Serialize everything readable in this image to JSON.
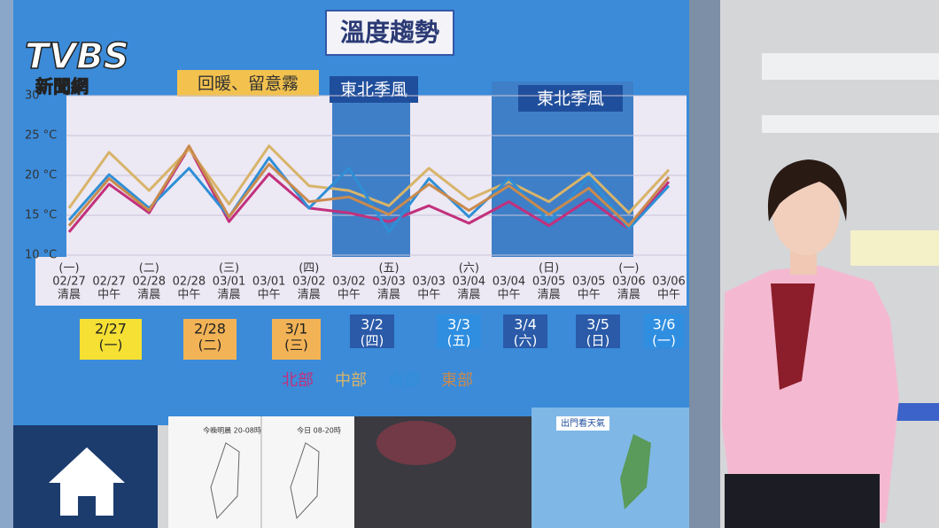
{
  "logo": {
    "brand": "TVBS",
    "sub": "新聞網"
  },
  "chart_data": {
    "type": "line",
    "title": "溫度趨勢",
    "annotations": [
      "回暖、留意霧",
      "東北季風",
      "東北季風"
    ],
    "categories": [
      "02/27",
      "02/27",
      "02/28",
      "02/28",
      "03/01",
      "03/01",
      "03/02",
      "03/02",
      "03/03",
      "03/03",
      "03/04",
      "03/04",
      "03/05",
      "03/05",
      "03/06",
      "03/06"
    ],
    "times": [
      "清晨",
      "中午",
      "清晨",
      "中午",
      "清晨",
      "中午",
      "清晨",
      "中午",
      "清晨",
      "中午",
      "清晨",
      "中午",
      "清晨",
      "中午",
      "清晨",
      "中午"
    ],
    "weekdays": [
      "(一)",
      null,
      "(二)",
      null,
      "(三)",
      null,
      "(四)",
      null,
      "(五)",
      null,
      "(六)",
      null,
      "(日)",
      null,
      "(一)",
      null
    ],
    "category_colors": [
      "#7b3fb0",
      "#333333",
      "#333333",
      "#333333",
      "#333333",
      "#333333",
      "#333333",
      "#333333",
      "#333333",
      "#333333",
      "#d2435a",
      "#d2435a",
      "#d2435a",
      "#d2435a",
      "#333333",
      "#333333"
    ],
    "ylim": [
      10,
      30
    ],
    "yticks": [
      {
        "value": 10,
        "label": "10 °C"
      },
      {
        "value": 15,
        "label": "15 °C"
      },
      {
        "value": 20,
        "label": "20 °C"
      },
      {
        "value": 25,
        "label": "25 °C"
      },
      30
    ],
    "grid": true,
    "series": [
      {
        "name": "北部",
        "color": "#c2307c",
        "values": [
          12.9,
          18.9,
          15.3,
          23.5,
          14.2,
          20.2,
          15.9,
          15.3,
          14.2,
          16.2,
          14.0,
          16.7,
          13.7,
          17.0,
          13.3,
          19.2
        ]
      },
      {
        "name": "中部",
        "color": "#d8b46a",
        "values": [
          15.9,
          22.9,
          18.1,
          23.3,
          16.4,
          23.7,
          18.7,
          18.1,
          16.2,
          20.9,
          17.0,
          19.2,
          16.7,
          20.3,
          15.3,
          20.7
        ]
      },
      {
        "name": "南部",
        "color": "#2f8fd6",
        "values": [
          14.4,
          20.1,
          15.9,
          20.9,
          14.8,
          22.2,
          15.9,
          20.9,
          12.9,
          19.6,
          14.8,
          19.6,
          14.2,
          19.8,
          13.3,
          18.7
        ]
      },
      {
        "name": "東部",
        "color": "#c98a4e",
        "values": [
          13.7,
          19.6,
          15.6,
          23.7,
          14.8,
          21.4,
          16.7,
          17.3,
          15.1,
          18.9,
          15.6,
          18.7,
          15.1,
          18.4,
          13.7,
          19.8
        ]
      }
    ]
  },
  "day_boxes": [
    {
      "date": "2/27",
      "weekday": "(一)"
    },
    {
      "date": "2/28",
      "weekday": "(二)"
    },
    {
      "date": "3/1",
      "weekday": "(三)"
    },
    {
      "date": "3/2",
      "weekday": "(四)"
    },
    {
      "date": "3/3",
      "weekday": "(五)"
    },
    {
      "date": "3/4",
      "weekday": "(六)"
    },
    {
      "date": "3/5",
      "weekday": "(日)"
    },
    {
      "date": "3/6",
      "weekday": "(一)"
    }
  ],
  "thumbnails": [
    "今晚明晨 20-08時",
    "今日 08-20時",
    "出門看天氣"
  ]
}
